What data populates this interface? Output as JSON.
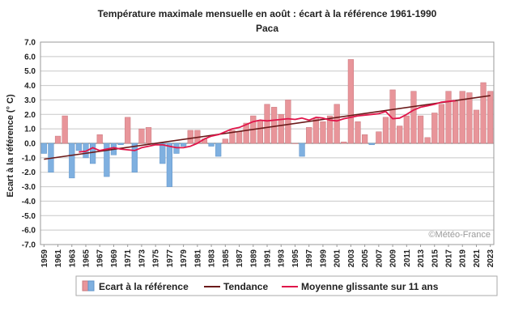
{
  "chart_data": {
    "type": "bar",
    "title": "Température maximale mensuelle en août : écart à la référence 1961-1990",
    "subtitle": "Paca",
    "ylabel": "Ecart à la référence (° C)",
    "xlabel": "",
    "ylim": [
      -7.0,
      7.0
    ],
    "yticks": [
      "7.0",
      "6.0",
      "5.0",
      "4.0",
      "3.0",
      "2.0",
      "1.0",
      "0.0",
      "-1.0",
      "-2.0",
      "-3.0",
      "-4.0",
      "-5.0",
      "-6.0",
      "-7.0"
    ],
    "xtick_labels": [
      "1959",
      "1961",
      "1963",
      "1965",
      "1967",
      "1969",
      "1971",
      "1973",
      "1975",
      "1977",
      "1979",
      "1981",
      "1983",
      "1985",
      "1987",
      "1989",
      "1991",
      "1993",
      "1995",
      "1997",
      "1999",
      "2001",
      "2003",
      "2005",
      "2007",
      "2009",
      "2011",
      "2013",
      "2015",
      "2017",
      "2019",
      "2021",
      "2023"
    ],
    "years": [
      1959,
      1960,
      1961,
      1962,
      1963,
      1964,
      1965,
      1966,
      1967,
      1968,
      1969,
      1970,
      1971,
      1972,
      1973,
      1974,
      1975,
      1976,
      1977,
      1978,
      1979,
      1980,
      1981,
      1982,
      1983,
      1984,
      1985,
      1986,
      1987,
      1988,
      1989,
      1990,
      1991,
      1992,
      1993,
      1994,
      1995,
      1996,
      1997,
      1998,
      1999,
      2000,
      2001,
      2002,
      2003,
      2004,
      2005,
      2006,
      2007,
      2008,
      2009,
      2010,
      2011,
      2012,
      2013,
      2014,
      2015,
      2016,
      2017,
      2018,
      2019,
      2020,
      2021,
      2022,
      2023
    ],
    "values": [
      -0.7,
      -2.0,
      0.5,
      1.9,
      -2.4,
      -0.5,
      -1.0,
      -1.4,
      0.6,
      -2.3,
      -0.8,
      -0.1,
      1.8,
      -2.0,
      1.0,
      1.1,
      -0.1,
      -1.4,
      -3.0,
      -0.7,
      -0.2,
      0.9,
      0.9,
      0.3,
      -0.2,
      -0.9,
      0.3,
      0.9,
      0.8,
      1.4,
      1.9,
      1.6,
      2.7,
      2.5,
      2.0,
      3.0,
      0.0,
      -0.9,
      1.1,
      1.7,
      1.5,
      1.9,
      2.7,
      0.1,
      5.8,
      1.5,
      0.6,
      -0.1,
      0.8,
      1.8,
      3.7,
      1.2,
      1.9,
      3.6,
      1.9,
      0.4,
      2.1,
      2.7,
      3.6,
      2.9,
      3.6,
      3.5,
      2.3,
      4.2,
      3.6
    ],
    "trend": {
      "name": "Tendance",
      "start": [
        1959,
        -1.1
      ],
      "end": [
        2023,
        3.3
      ]
    },
    "moving_average": {
      "name": "Moyenne glissante sur 11 ans",
      "x": [
        1964,
        1965,
        1966,
        1967,
        1968,
        1969,
        1970,
        1971,
        1972,
        1973,
        1974,
        1975,
        1976,
        1977,
        1978,
        1979,
        1980,
        1981,
        1982,
        1983,
        1984,
        1985,
        1986,
        1987,
        1988,
        1989,
        1990,
        1991,
        1992,
        1993,
        1994,
        1995,
        1996,
        1997,
        1998,
        1999,
        2000,
        2001,
        2002,
        2003,
        2004,
        2005,
        2006,
        2007,
        2008,
        2009,
        2010,
        2011,
        2012,
        2013,
        2014,
        2015,
        2016,
        2017,
        2018
      ],
      "y": [
        -0.6,
        -0.55,
        -0.3,
        -0.5,
        -0.4,
        -0.3,
        -0.4,
        -0.45,
        -0.5,
        -0.3,
        -0.2,
        -0.1,
        -0.1,
        -0.2,
        -0.3,
        -0.3,
        -0.2,
        0.0,
        0.3,
        0.5,
        0.6,
        0.8,
        1.0,
        1.1,
        1.3,
        1.5,
        1.6,
        1.55,
        1.6,
        1.65,
        1.7,
        1.65,
        1.75,
        1.6,
        1.8,
        1.75,
        1.6,
        1.55,
        1.7,
        1.8,
        1.9,
        1.95,
        2.0,
        2.05,
        2.2,
        1.7,
        1.75,
        2.0,
        2.3,
        2.5,
        2.6,
        2.7,
        2.85,
        2.9,
        2.95
      ]
    },
    "series": [
      {
        "name": "Ecart à la référence"
      },
      {
        "name": "Tendance"
      },
      {
        "name": "Moyenne glissante sur 11 ans"
      }
    ],
    "colors": {
      "positive": "#e8959a",
      "negative": "#7fb0e0",
      "positive_edge": "#c9787e",
      "negative_edge": "#5f93c8",
      "trend": "#6b1a1a",
      "moving_average": "#e0154a",
      "grid": "#c8c8c8",
      "frame": "#9a9a9a",
      "zero_line": "#666666",
      "credit": "#9a9a9a"
    },
    "grid": true,
    "legend_position": "bottom",
    "credit": "©Météo-France"
  }
}
